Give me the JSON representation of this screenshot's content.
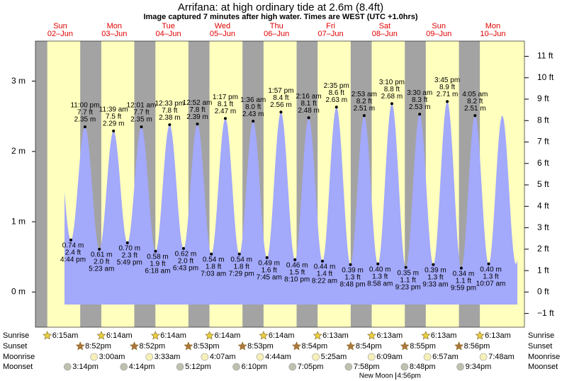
{
  "chart_data": {
    "type": "tide",
    "title": "Arrifana: at high  ordinary tide at 2.6m (8.4ft)",
    "subtitle": "Image captured 7 minutes after high water. Times are WEST (UTC +1.0hrs)",
    "days": [
      "Sun",
      "Mon",
      "Tue",
      "Wed",
      "Thu",
      "Fri",
      "Sat",
      "Sun",
      "Mon"
    ],
    "dates": [
      "02–Jun",
      "03–Jun",
      "04–Jun",
      "05–Jun",
      "06–Jun",
      "07–Jun",
      "08–Jun",
      "09–Jun",
      "10–Jun"
    ],
    "xlim": [
      1,
      218
    ],
    "ylim": [
      -0.5,
      3.57
    ],
    "yticks": [
      {
        "value": 0,
        "label": "0 m"
      },
      {
        "value": 1,
        "label": "1 m"
      },
      {
        "value": 2,
        "label": "2 m"
      },
      {
        "value": 3,
        "label": "3 m"
      }
    ],
    "y2lim": [
      -1.64,
      11.71
    ],
    "y2ticks": [
      {
        "value": -1,
        "label": "−1 ft"
      },
      {
        "value": 0,
        "label": "0 ft"
      },
      {
        "value": 1,
        "label": "1 ft"
      },
      {
        "value": 2,
        "label": "2 ft"
      },
      {
        "value": 3,
        "label": "3 ft"
      },
      {
        "value": 4,
        "label": "4 ft"
      },
      {
        "value": 5,
        "label": "5 ft"
      },
      {
        "value": 6,
        "label": "6 ft"
      },
      {
        "value": 7,
        "label": "7 ft"
      },
      {
        "value": 8,
        "label": "8 ft"
      },
      {
        "value": 9,
        "label": "9 ft"
      },
      {
        "value": 10,
        "label": "10 ft"
      },
      {
        "value": 11,
        "label": "11 ft"
      }
    ],
    "color": "#a3a9fb",
    "day_color": "#ffffbe",
    "night_color": "#a3a3a3",
    "x": [
      16.73,
      23.0,
      29.38,
      35.65,
      41.82,
      48.02,
      54.3,
      60.55,
      66.72,
      72.87,
      79.05,
      85.28,
      91.48,
      97.6,
      103.75,
      109.95,
      116.17,
      122.27,
      128.37,
      134.58,
      140.8,
      146.88,
      152.97,
      159.17,
      165.38,
      171.5,
      177.55,
      183.75,
      189.98,
      196.08,
      202.12
    ],
    "times": [
      "4:44 pm",
      "11:00 pm",
      "5:23 am",
      "11:39 am",
      "5:49 pm",
      "12:01 am",
      "6:18 am",
      "12:33 pm",
      "6:43 pm",
      "12:52 am",
      "7:03 am",
      "1:17 pm",
      "7:29 pm",
      "1:36 am",
      "7:45 am",
      "1:57 pm",
      "8:10 pm",
      "2:16 am",
      "8:22 am",
      "2:35 pm",
      "8:48 pm",
      "2:53 am",
      "8:58 am",
      "3:10 pm",
      "9:23 pm",
      "3:30 am",
      "9:33 am",
      "3:45 pm",
      "9:59 pm",
      "4:05 am",
      "10:07 am"
    ],
    "values": [
      0.74,
      2.35,
      0.61,
      2.29,
      0.7,
      2.35,
      0.58,
      2.38,
      0.62,
      2.39,
      0.54,
      2.47,
      0.54,
      2.43,
      0.49,
      2.56,
      0.46,
      2.48,
      0.44,
      2.63,
      0.39,
      2.51,
      0.4,
      2.68,
      0.35,
      2.53,
      0.39,
      2.71,
      0.34,
      2.51,
      0.4
    ],
    "value_labels": [
      "0.74 m",
      "2.35 m",
      "0.61 m",
      "2.29 m",
      "0.70 m",
      "2.35 m",
      "0.58 m",
      "2.38 m",
      "0.62 m",
      "2.39 m",
      "0.54 m",
      "2.47 m",
      "0.54 m",
      "2.43 m",
      "0.49 m",
      "2.56 m",
      "0.46 m",
      "2.48 m",
      "0.44 m",
      "2.63 m",
      "0.39 m",
      "2.51 m",
      "0.40 m",
      "2.68 m",
      "0.35 m",
      "2.53 m",
      "0.39 m",
      "2.71 m",
      "0.34 m",
      "2.51 m",
      "0.40 m"
    ],
    "ft_values": [
      2.4,
      7.7,
      2.0,
      7.5,
      2.3,
      7.7,
      1.9,
      7.8,
      2.0,
      7.8,
      1.8,
      8.1,
      1.8,
      8.0,
      1.6,
      8.4,
      1.5,
      8.1,
      1.4,
      8.6,
      1.3,
      8.2,
      1.3,
      8.8,
      1.1,
      8.3,
      1.3,
      8.9,
      1.1,
      8.2,
      1.3
    ],
    "ft_labels": [
      "2.4 ft",
      "7.7 ft",
      "2.0 ft",
      "7.5 ft",
      "2.3 ft",
      "7.7 ft",
      "1.9 ft",
      "7.8 ft",
      "2.0 ft",
      "7.8 ft",
      "1.8 ft",
      "8.1 ft",
      "1.8 ft",
      "8.0 ft",
      "1.6 ft",
      "8.4 ft",
      "1.5 ft",
      "8.1 ft",
      "1.4 ft",
      "8.6 ft",
      "1.3 ft",
      "8.2 ft",
      "1.3 ft",
      "8.8 ft",
      "1.1 ft",
      "8.3 ft",
      "1.3 ft",
      "8.9 ft",
      "1.1 ft",
      "8.2 ft",
      "1.3 ft"
    ],
    "astro": [
      {
        "name": "Sunrise",
        "labels": [
          "6:15am",
          "6:14am",
          "6:14am",
          "6:14am",
          "6:14am",
          "6:13am",
          "6:13am",
          "6:13am",
          "6:13am"
        ],
        "x": [
          6.25,
          30.23,
          54.23,
          78.23,
          102.23,
          126.22,
          150.22,
          174.22,
          198.22
        ],
        "color": "#e8d040"
      },
      {
        "name": "Sunset",
        "labels": [
          "8:52pm",
          "8:52pm",
          "8:53pm",
          "8:53pm",
          "8:54pm",
          "8:54pm",
          "8:55pm",
          "8:56pm"
        ],
        "x": [
          20.87,
          44.87,
          68.88,
          92.88,
          116.9,
          140.9,
          164.92,
          188.93
        ],
        "color": "#b07838"
      },
      {
        "name": "Moonrise",
        "labels": [
          "3:00am",
          "3:33am",
          "4:07am",
          "4:44am",
          "5:25am",
          "6:09am",
          "6:57am",
          "7:48am"
        ],
        "x": [
          27.0,
          51.55,
          76.12,
          100.73,
          125.42,
          150.15,
          174.95,
          199.8
        ],
        "color": "#f6f0b8"
      },
      {
        "name": "Moonset",
        "labels": [
          "3:14pm",
          "4:14pm",
          "5:12pm",
          "6:10pm",
          "7:05pm",
          "7:58pm",
          "8:48pm",
          "9:34pm"
        ],
        "x": [
          15.23,
          40.23,
          65.2,
          90.17,
          115.08,
          139.97,
          164.8,
          189.57
        ],
        "color": "#c0c0b0"
      }
    ],
    "moon_phase": {
      "name": "New Moon",
      "label": "4:56pm",
      "x": 160.93
    }
  }
}
